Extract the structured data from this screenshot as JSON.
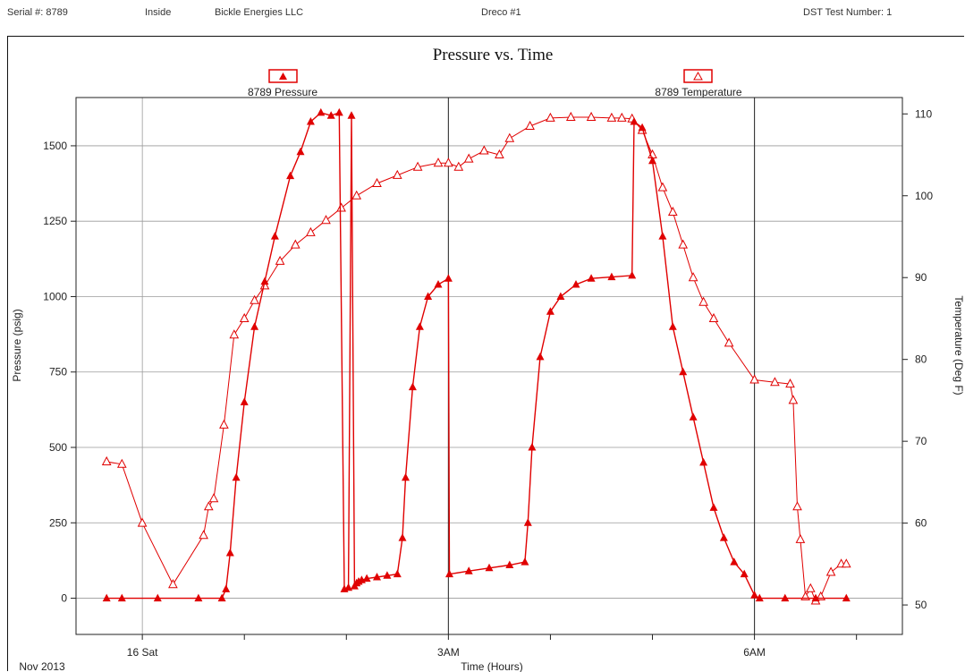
{
  "header": {
    "serial": "Serial #: 8789",
    "location": "Inside",
    "company": "Bickle Energies LLC",
    "well": "Dreco #1",
    "test": "DST Test Number: 1"
  },
  "colors": {
    "series": "#e00000",
    "grid": "#9a9a9a",
    "axis": "#222222"
  },
  "chart_data": {
    "type": "line",
    "title": "Pressure vs. Time",
    "xlabel": "Time (Hours)",
    "ylabel": "Pressure (psig)",
    "y2label": "Temperature (Deg F)",
    "date_label": "Nov 2013",
    "xlim": [
      -0.65,
      7.45
    ],
    "x_unit": "hours from 00:00 on Sat 16 Nov 2013",
    "x_ticks": [
      0,
      3,
      6
    ],
    "x_tick_labels": [
      "16 Sat",
      "3AM",
      "6AM"
    ],
    "ylim": [
      -120,
      1660
    ],
    "yticks": [
      0,
      250,
      500,
      750,
      1000,
      1250,
      1500
    ],
    "y2lim": [
      46.4,
      112
    ],
    "y2ticks": [
      50,
      60,
      70,
      80,
      90,
      100,
      110
    ],
    "grid": true,
    "legend": "top",
    "series": [
      {
        "name": "8789 Pressure",
        "axis": "left",
        "marker": "filled-triangle",
        "x": [
          -0.35,
          -0.2,
          0.15,
          0.55,
          0.78,
          0.82,
          0.86,
          0.92,
          1.0,
          1.1,
          1.2,
          1.3,
          1.45,
          1.55,
          1.65,
          1.75,
          1.85,
          1.93,
          1.98,
          2.02,
          2.05,
          2.08,
          2.1,
          2.12,
          2.15,
          2.2,
          2.3,
          2.4,
          2.5,
          2.55,
          2.58,
          2.65,
          2.72,
          2.8,
          2.9,
          3.0,
          3.01,
          3.2,
          3.4,
          3.6,
          3.75,
          3.78,
          3.82,
          3.9,
          4.0,
          4.1,
          4.25,
          4.4,
          4.6,
          4.8,
          4.82,
          4.9,
          5.0,
          5.1,
          5.2,
          5.3,
          5.4,
          5.5,
          5.6,
          5.7,
          5.8,
          5.9,
          6.0,
          6.05,
          6.3,
          6.6,
          6.9
        ],
        "y": [
          0,
          0,
          0,
          0,
          0,
          30,
          150,
          400,
          650,
          900,
          1050,
          1200,
          1400,
          1480,
          1580,
          1610,
          1600,
          1610,
          30,
          35,
          1600,
          40,
          50,
          55,
          60,
          65,
          70,
          75,
          80,
          200,
          400,
          700,
          900,
          1000,
          1040,
          1060,
          80,
          90,
          100,
          110,
          120,
          250,
          500,
          800,
          950,
          1000,
          1040,
          1060,
          1065,
          1070,
          1580,
          1560,
          1450,
          1200,
          900,
          750,
          600,
          450,
          300,
          200,
          120,
          80,
          10,
          0,
          0,
          0,
          0
        ]
      },
      {
        "name": "8789 Temperature",
        "axis": "right",
        "marker": "open-triangle",
        "x": [
          -0.35,
          -0.2,
          0.0,
          0.3,
          0.6,
          0.65,
          0.7,
          0.8,
          0.9,
          1.0,
          1.1,
          1.2,
          1.35,
          1.5,
          1.65,
          1.8,
          1.95,
          2.1,
          2.3,
          2.5,
          2.7,
          2.9,
          3.0,
          3.1,
          3.2,
          3.35,
          3.5,
          3.6,
          3.8,
          4.0,
          4.2,
          4.4,
          4.6,
          4.7,
          4.8,
          4.9,
          5.0,
          5.1,
          5.2,
          5.3,
          5.4,
          5.5,
          5.6,
          5.75,
          6.0,
          6.2,
          6.35,
          6.38,
          6.42,
          6.45,
          6.5,
          6.55,
          6.6,
          6.65,
          6.75,
          6.85,
          6.9
        ],
        "y": [
          67.5,
          67.2,
          60,
          52.5,
          58.5,
          62,
          63,
          72,
          83,
          85,
          87.2,
          89,
          92,
          94,
          95.5,
          97,
          98.5,
          100,
          101.5,
          102.5,
          103.5,
          104,
          104,
          103.5,
          104.5,
          105.5,
          105,
          107,
          108.5,
          109.5,
          109.6,
          109.6,
          109.5,
          109.5,
          109.4,
          108,
          105,
          101,
          98,
          94,
          90,
          87,
          85,
          82,
          77.5,
          77.2,
          77,
          75,
          62,
          58,
          51,
          52,
          50.5,
          51,
          54,
          55,
          55
        ]
      }
    ]
  }
}
